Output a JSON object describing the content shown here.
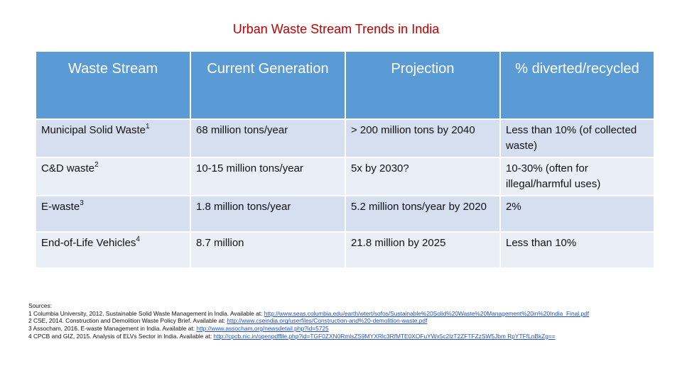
{
  "title": "Urban Waste Stream Trends in India",
  "headers": [
    "Waste Stream",
    "Current Generation",
    "Projection",
    "% diverted/recycled"
  ],
  "rows": [
    {
      "stream": "Municipal Solid Waste",
      "ref": "1",
      "current": "68 million tons/year",
      "projection": "> 200 million tons by 2040",
      "diverted": "Less than 10% (of collected waste)"
    },
    {
      "stream": "C&D waste",
      "ref": "2",
      "current": "10-15 million tons/year",
      "projection": "5x by 2030?",
      "diverted": "10-30% (often for illegal/harmful uses)"
    },
    {
      "stream": "E-waste",
      "ref": "3",
      "current": "1.8 million tons/year",
      "projection": "5.2 million tons/year by 2020",
      "diverted": "2%"
    },
    {
      "stream": "End-of-Life Vehicles",
      "ref": "4",
      "current": "8.7 million",
      "projection": "21.8 million by 2025",
      "diverted": "Less than 10%"
    }
  ],
  "sources": {
    "heading": "Sources:",
    "items": [
      {
        "text": "1 Columbia University, 2012. Sustainable Solid Waste Management in India. Available at: ",
        "link": "http://www.seas.columbia.edu/earth/wtert/sofos/Sustainable%20Solid%20Waste%20Management%20in%20India_Final.pdf"
      },
      {
        "text": "2 CSE, 2014. Construction and Demolition Waste Policy Brief. Available at: ",
        "link": "http://www.cseindia.org/userfiles/Construction-and%20-demolition-waste.pdf"
      },
      {
        "text": "3 Assocham, 2016. E-waste Management in India. Available at: ",
        "link": "http://www.assocham.org/newsdetail.php?id=5725"
      },
      {
        "text": "4 CPCB and GIZ, 2015. Analysis of ELVs Sector in India. Available at: ",
        "link": "http://cpcb.nic.in/openpdffile.php?id=TGF0ZXN0RmlsZS9MYXRlc3RfMTE0XOFuYWx5c2lzT2ZFTFZzSW5Jbm RpYTFfLnBkZg=="
      }
    ]
  }
}
